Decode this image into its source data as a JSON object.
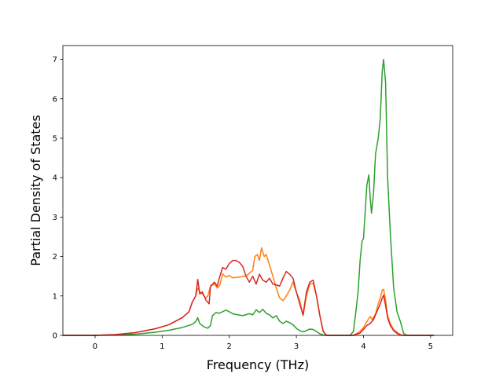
{
  "chart_data": {
    "type": "line",
    "title": "",
    "xlabel": "Frequency (THz)",
    "ylabel": "Partial Density of States",
    "xlim": [
      -0.48,
      5.33
    ],
    "ylim": [
      0,
      7.35
    ],
    "xticks": [
      0,
      1,
      2,
      3,
      4,
      5
    ],
    "yticks": [
      0,
      1,
      2,
      3,
      4,
      5,
      6,
      7
    ],
    "grid": false,
    "legend": "none",
    "series": [
      {
        "color": "#2ca02c",
        "points": [
          [
            -0.48,
            0
          ],
          [
            0,
            0
          ],
          [
            0.3,
            0.01
          ],
          [
            0.6,
            0.03
          ],
          [
            0.9,
            0.08
          ],
          [
            1.1,
            0.13
          ],
          [
            1.3,
            0.2
          ],
          [
            1.45,
            0.28
          ],
          [
            1.5,
            0.35
          ],
          [
            1.53,
            0.45
          ],
          [
            1.56,
            0.3
          ],
          [
            1.62,
            0.22
          ],
          [
            1.68,
            0.18
          ],
          [
            1.72,
            0.25
          ],
          [
            1.75,
            0.5
          ],
          [
            1.8,
            0.58
          ],
          [
            1.85,
            0.56
          ],
          [
            1.9,
            0.6
          ],
          [
            1.95,
            0.64
          ],
          [
            2.0,
            0.6
          ],
          [
            2.05,
            0.55
          ],
          [
            2.1,
            0.53
          ],
          [
            2.2,
            0.5
          ],
          [
            2.3,
            0.55
          ],
          [
            2.35,
            0.52
          ],
          [
            2.4,
            0.65
          ],
          [
            2.45,
            0.58
          ],
          [
            2.5,
            0.66
          ],
          [
            2.55,
            0.56
          ],
          [
            2.6,
            0.52
          ],
          [
            2.65,
            0.44
          ],
          [
            2.7,
            0.5
          ],
          [
            2.75,
            0.36
          ],
          [
            2.8,
            0.3
          ],
          [
            2.85,
            0.36
          ],
          [
            2.9,
            0.32
          ],
          [
            2.95,
            0.27
          ],
          [
            3.0,
            0.18
          ],
          [
            3.05,
            0.12
          ],
          [
            3.1,
            0.09
          ],
          [
            3.15,
            0.12
          ],
          [
            3.2,
            0.16
          ],
          [
            3.25,
            0.15
          ],
          [
            3.3,
            0.1
          ],
          [
            3.35,
            0.04
          ],
          [
            3.4,
            0.01
          ],
          [
            3.45,
            0
          ],
          [
            3.8,
            0
          ],
          [
            3.85,
            0.1
          ],
          [
            3.88,
            0.5
          ],
          [
            3.92,
            1.1
          ],
          [
            3.95,
            1.9
          ],
          [
            3.98,
            2.4
          ],
          [
            4.0,
            2.45
          ],
          [
            4.05,
            3.8
          ],
          [
            4.08,
            4.07
          ],
          [
            4.1,
            3.5
          ],
          [
            4.12,
            3.1
          ],
          [
            4.15,
            3.6
          ],
          [
            4.18,
            4.6
          ],
          [
            4.22,
            5.0
          ],
          [
            4.25,
            5.5
          ],
          [
            4.28,
            6.7
          ],
          [
            4.3,
            7.0
          ],
          [
            4.33,
            6.4
          ],
          [
            4.36,
            4.0
          ],
          [
            4.4,
            2.6
          ],
          [
            4.45,
            1.2
          ],
          [
            4.5,
            0.6
          ],
          [
            4.55,
            0.35
          ],
          [
            4.6,
            0.05
          ],
          [
            4.65,
            0
          ],
          [
            5.05,
            0
          ]
        ]
      },
      {
        "color": "#ff7f0e",
        "points": [
          [
            -0.48,
            0
          ],
          [
            0,
            0
          ],
          [
            0.3,
            0.02
          ],
          [
            0.6,
            0.07
          ],
          [
            0.9,
            0.17
          ],
          [
            1.1,
            0.27
          ],
          [
            1.3,
            0.45
          ],
          [
            1.4,
            0.6
          ],
          [
            1.45,
            0.85
          ],
          [
            1.5,
            1.0
          ],
          [
            1.53,
            1.2
          ],
          [
            1.56,
            1.1
          ],
          [
            1.6,
            1.05
          ],
          [
            1.65,
            0.95
          ],
          [
            1.68,
            1.0
          ],
          [
            1.72,
            1.25
          ],
          [
            1.78,
            1.3
          ],
          [
            1.82,
            1.2
          ],
          [
            1.86,
            1.28
          ],
          [
            1.9,
            1.56
          ],
          [
            1.95,
            1.48
          ],
          [
            2.0,
            1.52
          ],
          [
            2.05,
            1.46
          ],
          [
            2.15,
            1.48
          ],
          [
            2.25,
            1.5
          ],
          [
            2.3,
            1.58
          ],
          [
            2.35,
            1.65
          ],
          [
            2.38,
            2.0
          ],
          [
            2.42,
            2.05
          ],
          [
            2.45,
            1.9
          ],
          [
            2.48,
            2.22
          ],
          [
            2.52,
            2.0
          ],
          [
            2.55,
            2.05
          ],
          [
            2.6,
            1.78
          ],
          [
            2.65,
            1.5
          ],
          [
            2.7,
            1.2
          ],
          [
            2.75,
            0.95
          ],
          [
            2.8,
            0.88
          ],
          [
            2.85,
            1.0
          ],
          [
            2.9,
            1.15
          ],
          [
            2.95,
            1.35
          ],
          [
            3.0,
            1.1
          ],
          [
            3.05,
            0.88
          ],
          [
            3.1,
            0.5
          ],
          [
            3.15,
            1.0
          ],
          [
            3.2,
            1.3
          ],
          [
            3.25,
            1.32
          ],
          [
            3.3,
            1.0
          ],
          [
            3.35,
            0.5
          ],
          [
            3.4,
            0.1
          ],
          [
            3.45,
            0
          ],
          [
            3.85,
            0
          ],
          [
            3.95,
            0.1
          ],
          [
            4.0,
            0.2
          ],
          [
            4.05,
            0.35
          ],
          [
            4.1,
            0.48
          ],
          [
            4.13,
            0.4
          ],
          [
            4.18,
            0.55
          ],
          [
            4.22,
            0.8
          ],
          [
            4.25,
            0.95
          ],
          [
            4.28,
            1.15
          ],
          [
            4.3,
            1.17
          ],
          [
            4.33,
            0.9
          ],
          [
            4.36,
            0.5
          ],
          [
            4.4,
            0.3
          ],
          [
            4.45,
            0.15
          ],
          [
            4.5,
            0.08
          ],
          [
            4.55,
            0.02
          ],
          [
            4.6,
            0
          ],
          [
            5.05,
            0
          ]
        ]
      },
      {
        "color": "#d62728",
        "points": [
          [
            -0.48,
            0
          ],
          [
            0,
            0
          ],
          [
            0.3,
            0.02
          ],
          [
            0.6,
            0.07
          ],
          [
            0.9,
            0.17
          ],
          [
            1.1,
            0.27
          ],
          [
            1.3,
            0.45
          ],
          [
            1.4,
            0.6
          ],
          [
            1.45,
            0.85
          ],
          [
            1.5,
            1.0
          ],
          [
            1.53,
            1.42
          ],
          [
            1.56,
            1.05
          ],
          [
            1.6,
            1.1
          ],
          [
            1.65,
            0.9
          ],
          [
            1.7,
            0.8
          ],
          [
            1.72,
            1.25
          ],
          [
            1.78,
            1.35
          ],
          [
            1.82,
            1.25
          ],
          [
            1.86,
            1.5
          ],
          [
            1.9,
            1.72
          ],
          [
            1.95,
            1.68
          ],
          [
            2.0,
            1.82
          ],
          [
            2.05,
            1.9
          ],
          [
            2.1,
            1.9
          ],
          [
            2.15,
            1.85
          ],
          [
            2.2,
            1.75
          ],
          [
            2.25,
            1.5
          ],
          [
            2.3,
            1.35
          ],
          [
            2.35,
            1.5
          ],
          [
            2.4,
            1.3
          ],
          [
            2.45,
            1.55
          ],
          [
            2.5,
            1.4
          ],
          [
            2.55,
            1.35
          ],
          [
            2.6,
            1.45
          ],
          [
            2.65,
            1.3
          ],
          [
            2.7,
            1.28
          ],
          [
            2.75,
            1.25
          ],
          [
            2.8,
            1.45
          ],
          [
            2.85,
            1.62
          ],
          [
            2.9,
            1.55
          ],
          [
            2.95,
            1.45
          ],
          [
            3.0,
            1.1
          ],
          [
            3.05,
            0.8
          ],
          [
            3.1,
            0.52
          ],
          [
            3.15,
            1.1
          ],
          [
            3.2,
            1.35
          ],
          [
            3.25,
            1.4
          ],
          [
            3.3,
            1.0
          ],
          [
            3.35,
            0.5
          ],
          [
            3.4,
            0.1
          ],
          [
            3.45,
            0
          ],
          [
            3.85,
            0
          ],
          [
            3.95,
            0.06
          ],
          [
            4.0,
            0.15
          ],
          [
            4.05,
            0.25
          ],
          [
            4.1,
            0.3
          ],
          [
            4.15,
            0.4
          ],
          [
            4.2,
            0.6
          ],
          [
            4.25,
            0.8
          ],
          [
            4.28,
            0.95
          ],
          [
            4.3,
            1.02
          ],
          [
            4.33,
            0.75
          ],
          [
            4.36,
            0.45
          ],
          [
            4.4,
            0.25
          ],
          [
            4.45,
            0.12
          ],
          [
            4.5,
            0.05
          ],
          [
            4.55,
            0.01
          ],
          [
            4.6,
            0
          ],
          [
            5.05,
            0
          ]
        ]
      }
    ]
  }
}
